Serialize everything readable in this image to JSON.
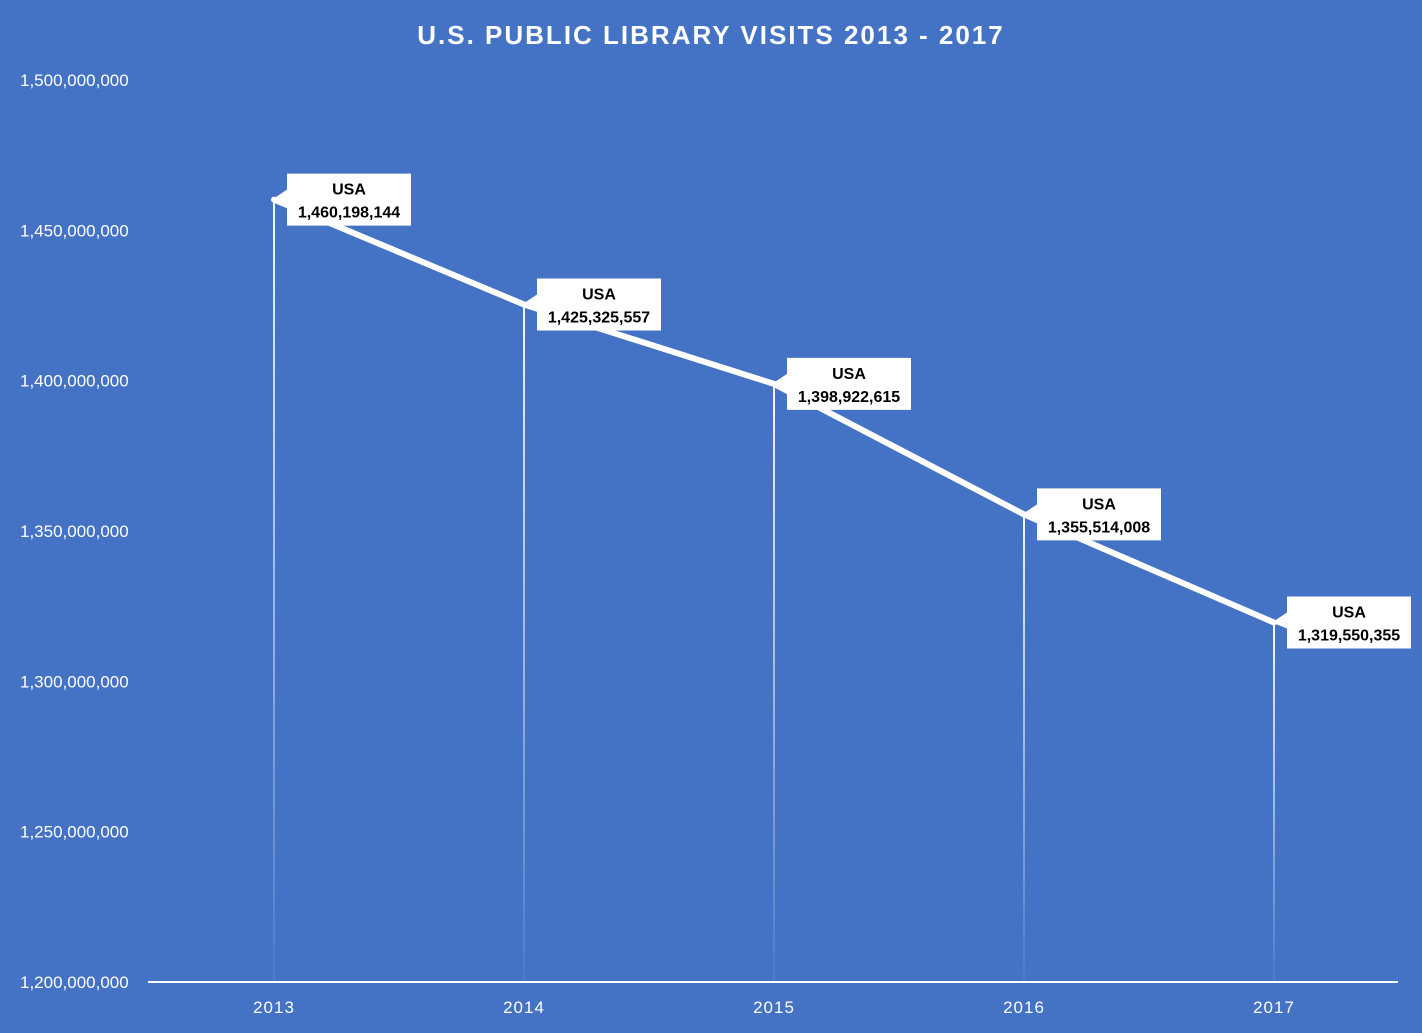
{
  "chart_data": {
    "type": "line",
    "title": "U.S. PUBLIC LIBRARY VISITS 2013 - 2017",
    "categories": [
      "2013",
      "2014",
      "2015",
      "2016",
      "2017"
    ],
    "series": [
      {
        "name": "USA",
        "values": [
          1460198144,
          1425325557,
          1398922615,
          1355514008,
          1319550355
        ]
      }
    ],
    "data_labels": [
      "1,460,198,144",
      "1,425,325,557",
      "1,398,922,615",
      "1,355,514,008",
      "1,319,550,355"
    ],
    "yticks": [
      "1,200,000,000",
      "1,250,000,000",
      "1,300,000,000",
      "1,350,000,000",
      "1,400,000,000",
      "1,450,000,000",
      "1,500,000,000"
    ],
    "ylim": [
      1200000000,
      1500000000
    ],
    "grid": false,
    "legend": "none",
    "colors": {
      "background": "#4472c4",
      "line": "#ffffff",
      "label_box": "#ffffff",
      "label_text": "#000000"
    }
  }
}
